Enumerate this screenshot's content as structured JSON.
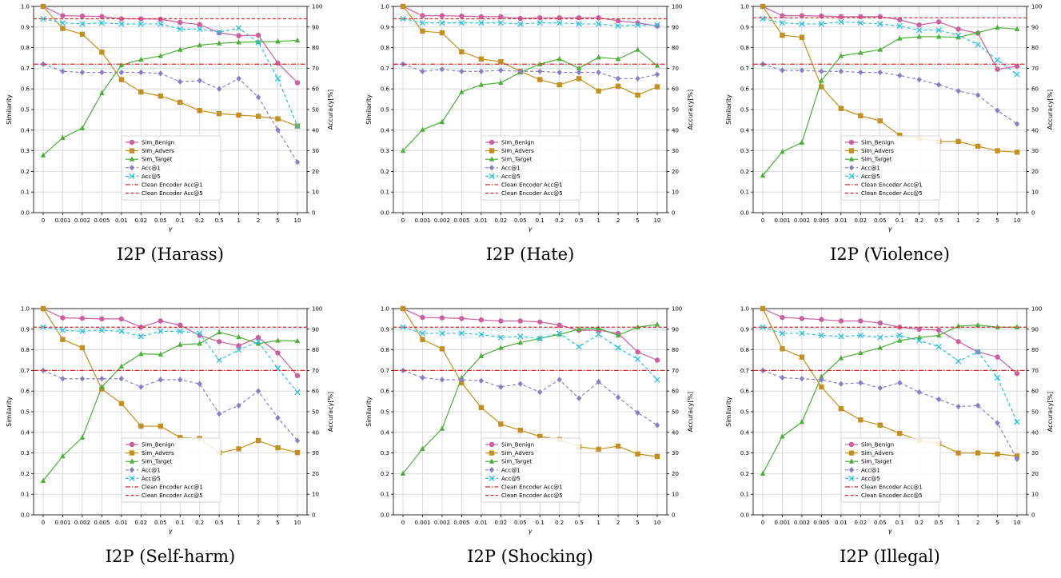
{
  "figure": {
    "legend_labels": [
      "Sim_Benign",
      "Sim_Advers",
      "Sim_Target",
      "Acc@1",
      "Acc@5",
      "Clean Encoder Acc@1",
      "Clean Encoder Acc@5"
    ],
    "colors": {
      "Sim_Benign": "#cc5fa0",
      "Sim_Advers": "#c3901f",
      "Sim_Target": "#4caf3a",
      "Acc@1": "#8a7fc6",
      "Acc@5": "#29c0e0",
      "Clean Encoder Acc@1": "#d62728",
      "Clean Encoder Acc@5": "#d62728"
    }
  },
  "chart_data": [
    {
      "type": "line",
      "caption": "I2P (Harass)",
      "xlabel": "γ",
      "ylabel": "Similarity",
      "y2label": "Accuracy[%]",
      "categories": [
        "0",
        "0.001",
        "0.002",
        "0.005",
        "0.01",
        "0.02",
        "0.05",
        "0.1",
        "0.2",
        "0.5",
        "1",
        "2",
        "5",
        "10"
      ],
      "ylim": [
        0,
        1.0
      ],
      "y2lim": [
        0,
        100
      ],
      "yticks": [
        "0.0",
        "0.1",
        "0.2",
        "0.3",
        "0.4",
        "0.5",
        "0.6",
        "0.7",
        "0.8",
        "0.9",
        "1.0"
      ],
      "y2ticks": [
        "0",
        "10",
        "20",
        "30",
        "40",
        "50",
        "60",
        "70",
        "80",
        "90",
        "100"
      ],
      "legend_position": "lower-center",
      "grid": true,
      "series": [
        {
          "name": "Sim_Benign",
          "axis": "left",
          "values": [
            1.0,
            0.955,
            0.953,
            0.951,
            0.94,
            0.94,
            0.938,
            0.922,
            0.912,
            0.872,
            0.858,
            0.86,
            0.725,
            0.63
          ]
        },
        {
          "name": "Sim_Advers",
          "axis": "left",
          "values": [
            1.0,
            0.893,
            0.865,
            0.778,
            0.645,
            0.585,
            0.565,
            0.535,
            0.495,
            0.48,
            0.473,
            0.467,
            0.455,
            0.42
          ]
        },
        {
          "name": "Sim_Target",
          "axis": "left",
          "values": [
            0.278,
            0.363,
            0.41,
            0.58,
            0.715,
            0.742,
            0.76,
            0.79,
            0.812,
            0.821,
            0.826,
            0.828,
            0.83,
            0.835
          ]
        },
        {
          "name": "Acc@1",
          "axis": "right",
          "values": [
            72,
            68.5,
            68,
            68,
            68,
            68,
            67.5,
            63.5,
            64,
            60,
            65,
            56,
            40,
            24.5
          ]
        },
        {
          "name": "Acc@5",
          "axis": "right",
          "values": [
            94,
            92,
            91.5,
            92,
            91.5,
            91.5,
            91.5,
            89,
            89,
            87.5,
            89.5,
            82.5,
            65,
            42
          ]
        },
        {
          "name": "Clean Encoder Acc@1",
          "axis": "right",
          "constant": 72
        },
        {
          "name": "Clean Encoder Acc@5",
          "axis": "right",
          "constant": 94
        }
      ]
    },
    {
      "type": "line",
      "caption": "I2P (Hate)",
      "xlabel": "γ",
      "ylabel": "Similarity",
      "y2label": "Accuracy[%]",
      "categories": [
        "0",
        "0.001",
        "0.002",
        "0.005",
        "0.01",
        "0.02",
        "0.05",
        "0.1",
        "0.2",
        "0.5",
        "1",
        "2",
        "5",
        "10"
      ],
      "ylim": [
        0,
        1.0
      ],
      "y2lim": [
        0,
        100
      ],
      "yticks": [
        "0.0",
        "0.1",
        "0.2",
        "0.3",
        "0.4",
        "0.5",
        "0.6",
        "0.7",
        "0.8",
        "0.9",
        "1.0"
      ],
      "y2ticks": [
        "0",
        "10",
        "20",
        "30",
        "40",
        "50",
        "60",
        "70",
        "80",
        "90",
        "100"
      ],
      "legend_position": "lower-center",
      "grid": true,
      "series": [
        {
          "name": "Sim_Benign",
          "axis": "left",
          "values": [
            1.0,
            0.955,
            0.955,
            0.953,
            0.95,
            0.95,
            0.942,
            0.945,
            0.945,
            0.945,
            0.945,
            0.93,
            0.92,
            0.905
          ]
        },
        {
          "name": "Sim_Advers",
          "axis": "left",
          "values": [
            1.0,
            0.88,
            0.872,
            0.78,
            0.745,
            0.732,
            0.685,
            0.645,
            0.62,
            0.65,
            0.59,
            0.613,
            0.57,
            0.61
          ]
        },
        {
          "name": "Sim_Target",
          "axis": "left",
          "values": [
            0.3,
            0.402,
            0.44,
            0.585,
            0.62,
            0.63,
            0.68,
            0.72,
            0.745,
            0.7,
            0.753,
            0.745,
            0.79,
            0.713
          ]
        },
        {
          "name": "Acc@1",
          "axis": "right",
          "values": [
            72,
            68.5,
            69.5,
            68.5,
            68.5,
            69,
            68.5,
            68.5,
            68,
            68,
            68,
            65,
            65,
            67
          ]
        },
        {
          "name": "Acc@5",
          "axis": "right",
          "values": [
            94,
            92,
            92,
            92,
            92,
            92,
            91.5,
            92,
            92,
            91.5,
            91.5,
            90.5,
            91,
            91
          ]
        },
        {
          "name": "Clean Encoder Acc@1",
          "axis": "right",
          "constant": 72
        },
        {
          "name": "Clean Encoder Acc@5",
          "axis": "right",
          "constant": 94
        }
      ]
    },
    {
      "type": "line",
      "caption": "I2P (Violence)",
      "xlabel": "γ",
      "ylabel": "Similarity",
      "y2label": "Accuracy[%]",
      "categories": [
        "0",
        "0.001",
        "0.002",
        "0.005",
        "0.01",
        "0.02",
        "0.05",
        "0.1",
        "0.2",
        "0.5",
        "1",
        "2",
        "5",
        "10"
      ],
      "ylim": [
        0,
        1.0
      ],
      "y2lim": [
        0,
        100
      ],
      "yticks": [
        "0.0",
        "0.1",
        "0.2",
        "0.3",
        "0.4",
        "0.5",
        "0.6",
        "0.7",
        "0.8",
        "0.9",
        "1.0"
      ],
      "y2ticks": [
        "0",
        "10",
        "20",
        "30",
        "40",
        "50",
        "60",
        "70",
        "80",
        "90",
        "100"
      ],
      "legend_position": "lower-center",
      "grid": true,
      "series": [
        {
          "name": "Sim_Benign",
          "axis": "left",
          "values": [
            1.0,
            0.955,
            0.955,
            0.953,
            0.95,
            0.95,
            0.95,
            0.935,
            0.91,
            0.925,
            0.89,
            0.87,
            0.695,
            0.71
          ]
        },
        {
          "name": "Sim_Advers",
          "axis": "left",
          "values": [
            1.0,
            0.86,
            0.85,
            0.61,
            0.505,
            0.47,
            0.445,
            0.375,
            0.36,
            0.345,
            0.345,
            0.322,
            0.3,
            0.293
          ]
        },
        {
          "name": "Sim_Target",
          "axis": "left",
          "values": [
            0.18,
            0.295,
            0.34,
            0.64,
            0.76,
            0.775,
            0.79,
            0.845,
            0.853,
            0.853,
            0.85,
            0.873,
            0.897,
            0.89
          ]
        },
        {
          "name": "Acc@1",
          "axis": "right",
          "values": [
            72,
            69,
            69,
            68.5,
            68.5,
            68,
            68,
            66.5,
            64.5,
            62,
            59,
            57,
            49.5,
            43
          ]
        },
        {
          "name": "Acc@5",
          "axis": "right",
          "values": [
            94,
            92,
            91.5,
            91.5,
            92.5,
            92,
            91.5,
            90.5,
            88.5,
            88.5,
            86,
            81.5,
            74,
            67
          ]
        },
        {
          "name": "Clean Encoder Acc@1",
          "axis": "right",
          "constant": 72
        },
        {
          "name": "Clean Encoder Acc@5",
          "axis": "right",
          "constant": 94.5
        }
      ]
    },
    {
      "type": "line",
      "caption": "I2P (Self-harm)",
      "xlabel": "γ",
      "ylabel": "Similarity",
      "y2label": "Accuracy[%]",
      "categories": [
        "0",
        "0.001",
        "0.002",
        "0.005",
        "0.01",
        "0.02",
        "0.05",
        "0.1",
        "0.2",
        "0.5",
        "1",
        "2",
        "5",
        "10"
      ],
      "ylim": [
        0,
        1.0
      ],
      "y2lim": [
        0,
        100
      ],
      "yticks": [
        "0.0",
        "0.1",
        "0.2",
        "0.3",
        "0.4",
        "0.5",
        "0.6",
        "0.7",
        "0.8",
        "0.9",
        "1.0"
      ],
      "y2ticks": [
        "0",
        "10",
        "20",
        "30",
        "40",
        "50",
        "60",
        "70",
        "80",
        "90",
        "100"
      ],
      "legend_position": "lower-center",
      "grid": true,
      "series": [
        {
          "name": "Sim_Benign",
          "axis": "left",
          "values": [
            1.0,
            0.955,
            0.953,
            0.95,
            0.95,
            0.91,
            0.94,
            0.92,
            0.87,
            0.84,
            0.82,
            0.86,
            0.785,
            0.675
          ]
        },
        {
          "name": "Sim_Advers",
          "axis": "left",
          "values": [
            1.0,
            0.85,
            0.81,
            0.61,
            0.54,
            0.43,
            0.43,
            0.375,
            0.37,
            0.302,
            0.32,
            0.36,
            0.325,
            0.302
          ]
        },
        {
          "name": "Sim_Target",
          "axis": "left",
          "values": [
            0.165,
            0.285,
            0.375,
            0.62,
            0.72,
            0.78,
            0.778,
            0.825,
            0.83,
            0.885,
            0.862,
            0.83,
            0.845,
            0.843
          ]
        },
        {
          "name": "Acc@1",
          "axis": "right",
          "values": [
            70,
            66,
            66,
            66,
            66,
            62,
            65.5,
            65.5,
            63.5,
            49,
            53,
            60,
            47,
            36
          ]
        },
        {
          "name": "Acc@5",
          "axis": "right",
          "values": [
            91,
            89.5,
            89,
            89.5,
            89,
            86.5,
            89,
            89,
            88,
            75,
            80,
            84,
            71,
            59.5
          ]
        },
        {
          "name": "Clean Encoder Acc@1",
          "axis": "right",
          "constant": 70
        },
        {
          "name": "Clean Encoder Acc@5",
          "axis": "right",
          "constant": 91
        }
      ]
    },
    {
      "type": "line",
      "caption": "I2P (Shocking)",
      "xlabel": "γ",
      "ylabel": "Similarity",
      "y2label": "Accuracy[%]",
      "categories": [
        "0",
        "0.001",
        "0.002",
        "0.005",
        "0.01",
        "0.02",
        "0.05",
        "0.1",
        "0.2",
        "0.5",
        "1",
        "2",
        "5",
        "10"
      ],
      "ylim": [
        0,
        1.0
      ],
      "y2lim": [
        0,
        100
      ],
      "yticks": [
        "0.0",
        "0.1",
        "0.2",
        "0.3",
        "0.4",
        "0.5",
        "0.6",
        "0.7",
        "0.8",
        "0.9",
        "1.0"
      ],
      "y2ticks": [
        "0",
        "10",
        "20",
        "30",
        "40",
        "50",
        "60",
        "70",
        "80",
        "90",
        "100"
      ],
      "legend_position": "lower-center",
      "grid": true,
      "series": [
        {
          "name": "Sim_Benign",
          "axis": "left",
          "values": [
            1.0,
            0.957,
            0.955,
            0.952,
            0.945,
            0.94,
            0.94,
            0.935,
            0.92,
            0.895,
            0.895,
            0.88,
            0.79,
            0.75
          ]
        },
        {
          "name": "Sim_Advers",
          "axis": "left",
          "values": [
            1.0,
            0.85,
            0.805,
            0.64,
            0.52,
            0.44,
            0.41,
            0.38,
            0.365,
            0.33,
            0.318,
            0.333,
            0.295,
            0.283
          ]
        },
        {
          "name": "Sim_Target",
          "axis": "left",
          "values": [
            0.2,
            0.32,
            0.418,
            0.665,
            0.77,
            0.81,
            0.835,
            0.855,
            0.875,
            0.9,
            0.905,
            0.87,
            0.91,
            0.923
          ]
        },
        {
          "name": "Acc@1",
          "axis": "right",
          "values": [
            70,
            66.5,
            65.5,
            65.5,
            65,
            62,
            63.5,
            59.5,
            65.5,
            56.5,
            64.5,
            57,
            49.5,
            43.5
          ]
        },
        {
          "name": "Acc@5",
          "axis": "right",
          "values": [
            91,
            88,
            88,
            88,
            87.5,
            86,
            86.5,
            85.5,
            88,
            81.5,
            87.5,
            81,
            75.5,
            65.5
          ]
        },
        {
          "name": "Clean Encoder Acc@1",
          "axis": "right",
          "constant": 70
        },
        {
          "name": "Clean Encoder Acc@5",
          "axis": "right",
          "constant": 91
        }
      ]
    },
    {
      "type": "line",
      "caption": "I2P (Illegal)",
      "xlabel": "γ",
      "ylabel": "Similarity",
      "y2label": "Accuracy[%]",
      "categories": [
        "0",
        "0.001",
        "0.002",
        "0.005",
        "0.01",
        "0.02",
        "0.05",
        "0.1",
        "0.2",
        "0.5",
        "1",
        "2",
        "5",
        "10"
      ],
      "ylim": [
        0,
        1.0
      ],
      "y2lim": [
        0,
        100
      ],
      "yticks": [
        "0.0",
        "0.1",
        "0.2",
        "0.3",
        "0.4",
        "0.5",
        "0.6",
        "0.7",
        "0.8",
        "0.9",
        "1.0"
      ],
      "y2ticks": [
        "0",
        "10",
        "20",
        "30",
        "40",
        "50",
        "60",
        "70",
        "80",
        "90",
        "100"
      ],
      "legend_position": "lower-center",
      "grid": true,
      "series": [
        {
          "name": "Sim_Benign",
          "axis": "left",
          "values": [
            1.0,
            0.957,
            0.952,
            0.947,
            0.94,
            0.94,
            0.93,
            0.91,
            0.9,
            0.895,
            0.84,
            0.79,
            0.765,
            0.685
          ]
        },
        {
          "name": "Sim_Advers",
          "axis": "left",
          "values": [
            1.0,
            0.805,
            0.765,
            0.62,
            0.515,
            0.46,
            0.435,
            0.395,
            0.36,
            0.345,
            0.3,
            0.3,
            0.295,
            0.285
          ]
        },
        {
          "name": "Sim_Target",
          "axis": "left",
          "values": [
            0.2,
            0.38,
            0.45,
            0.67,
            0.76,
            0.785,
            0.81,
            0.845,
            0.86,
            0.87,
            0.915,
            0.92,
            0.91,
            0.91
          ]
        },
        {
          "name": "Acc@1",
          "axis": "right",
          "values": [
            70,
            66.5,
            66,
            65.5,
            63.5,
            64,
            61.5,
            64,
            59.5,
            56,
            52.5,
            53,
            44.5,
            27
          ]
        },
        {
          "name": "Acc@5",
          "axis": "right",
          "values": [
            91,
            88,
            88,
            87,
            86.5,
            87,
            86,
            87,
            84.5,
            81.5,
            74.5,
            79,
            66.5,
            45
          ]
        },
        {
          "name": "Clean Encoder Acc@1",
          "axis": "right",
          "constant": 70
        },
        {
          "name": "Clean Encoder Acc@5",
          "axis": "right",
          "constant": 91
        }
      ]
    }
  ]
}
